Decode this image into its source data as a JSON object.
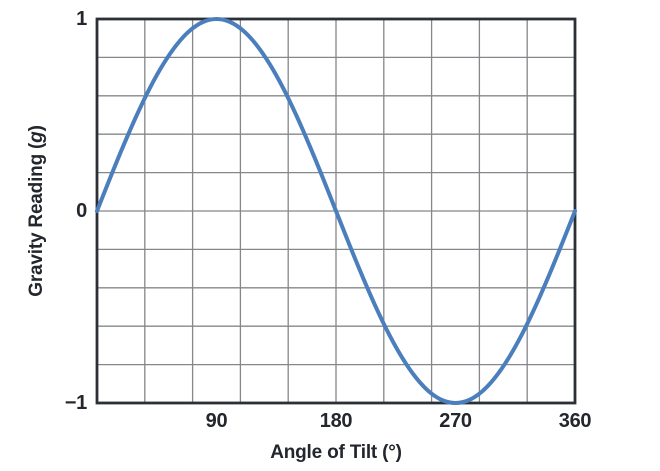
{
  "figure": {
    "background": "#ffffff"
  },
  "chart_data": {
    "type": "line",
    "title": "",
    "xlabel": "Angle of Tilt (°)",
    "ylabel": "Gravity Reading (g)",
    "ylabel_parts": {
      "prefix": "Gravity Reading (",
      "variable": "g",
      "suffix": ")"
    },
    "xlim": [
      0,
      360
    ],
    "ylim": [
      -1,
      1
    ],
    "x_ticks": [
      90,
      180,
      270,
      360
    ],
    "x_tick_labels": [
      "90",
      "180",
      "270",
      "360"
    ],
    "y_ticks": [
      1,
      0,
      -1
    ],
    "y_tick_labels": [
      "1",
      "0",
      "−1"
    ],
    "x_grid_step": 36,
    "y_grid_step": 0.2,
    "grid": true,
    "legend": false,
    "colors": {
      "curve": "#4a7ebc",
      "grid": "#85878a",
      "frame": "#2c2f35",
      "text": "#23262c",
      "background": "#ffffff"
    },
    "series": [
      {
        "name": "Gravity Reading",
        "x": [
          0,
          10,
          20,
          30,
          40,
          50,
          60,
          70,
          80,
          90,
          100,
          110,
          120,
          130,
          140,
          150,
          160,
          170,
          180,
          190,
          200,
          210,
          220,
          230,
          240,
          250,
          260,
          270,
          280,
          290,
          300,
          310,
          320,
          330,
          340,
          350,
          360
        ],
        "y": [
          0,
          0.174,
          0.342,
          0.5,
          0.643,
          0.766,
          0.866,
          0.94,
          0.985,
          1,
          0.985,
          0.94,
          0.866,
          0.766,
          0.643,
          0.5,
          0.342,
          0.174,
          0,
          -0.174,
          -0.342,
          -0.5,
          -0.643,
          -0.766,
          -0.866,
          -0.94,
          -0.985,
          -1,
          -0.985,
          -0.94,
          -0.866,
          -0.766,
          -0.643,
          -0.5,
          -0.342,
          -0.174,
          0
        ]
      }
    ]
  }
}
